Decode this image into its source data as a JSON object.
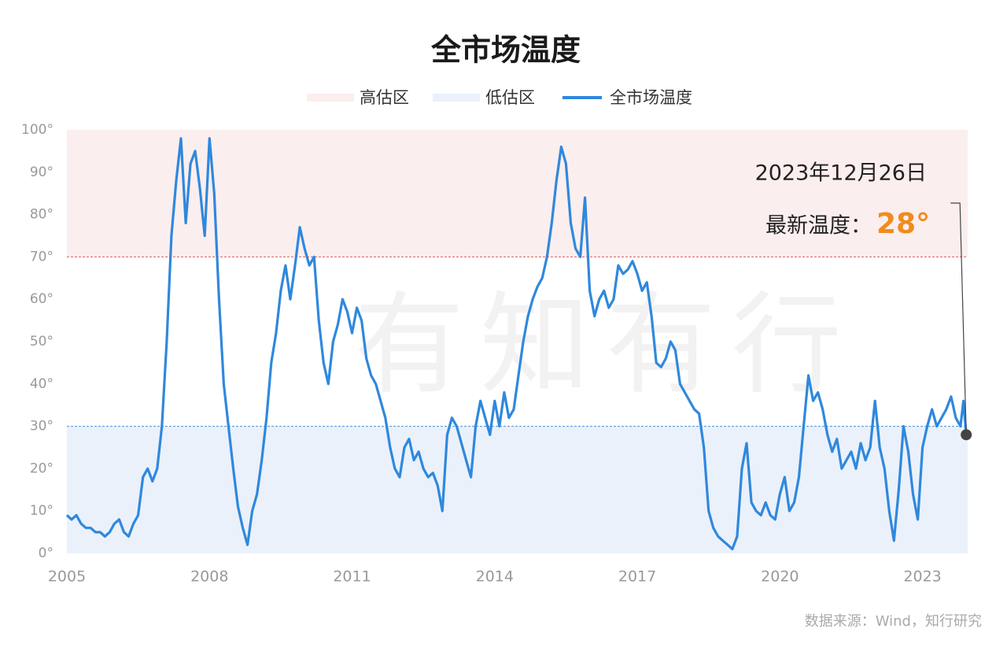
{
  "chart_data": {
    "type": "line",
    "title": "全市场温度",
    "watermark": "有知有行",
    "source": "数据来源：Wind，知行研究",
    "xlim": [
      2005,
      2023.95
    ],
    "xticks": [
      2005,
      2008,
      2011,
      2014,
      2017,
      2020,
      2023
    ],
    "ylim": [
      0,
      100
    ],
    "yticks": [
      {
        "value": 0,
        "label": "0°"
      },
      {
        "value": 10,
        "label": "10°"
      },
      {
        "value": 20,
        "label": "20°"
      },
      {
        "value": 30,
        "label": "30°"
      },
      {
        "value": 40,
        "label": "40°"
      },
      {
        "value": 50,
        "label": "50°"
      },
      {
        "value": 60,
        "label": "60°"
      },
      {
        "value": 70,
        "label": "70°"
      },
      {
        "value": 80,
        "label": "80°"
      },
      {
        "value": 90,
        "label": "90°"
      },
      {
        "value": 100,
        "label": "100°"
      }
    ],
    "grid": false,
    "bands": [
      {
        "name": "高估区",
        "range": [
          70,
          100
        ],
        "color": "#fbeeee",
        "edge_color": "#e05a5a"
      },
      {
        "name": "低估区",
        "range": [
          0,
          30
        ],
        "color": "#eaf1fa",
        "edge_color": "#4a8fd6"
      }
    ],
    "x": [
      2005.0,
      2005.1,
      2005.2,
      2005.3,
      2005.4,
      2005.5,
      2005.6,
      2005.7,
      2005.8,
      2005.9,
      2006.0,
      2006.1,
      2006.2,
      2006.3,
      2006.4,
      2006.5,
      2006.6,
      2006.7,
      2006.8,
      2006.9,
      2007.0,
      2007.1,
      2007.2,
      2007.3,
      2007.4,
      2007.5,
      2007.6,
      2007.7,
      2007.8,
      2007.9,
      2008.0,
      2008.1,
      2008.2,
      2008.3,
      2008.4,
      2008.5,
      2008.6,
      2008.7,
      2008.8,
      2008.9,
      2009.0,
      2009.1,
      2009.2,
      2009.3,
      2009.4,
      2009.5,
      2009.6,
      2009.7,
      2009.8,
      2009.9,
      2010.0,
      2010.1,
      2010.2,
      2010.3,
      2010.4,
      2010.5,
      2010.6,
      2010.7,
      2010.8,
      2010.9,
      2011.0,
      2011.1,
      2011.2,
      2011.3,
      2011.4,
      2011.5,
      2011.6,
      2011.7,
      2011.8,
      2011.9,
      2012.0,
      2012.1,
      2012.2,
      2012.3,
      2012.4,
      2012.5,
      2012.6,
      2012.7,
      2012.8,
      2012.9,
      2013.0,
      2013.1,
      2013.2,
      2013.3,
      2013.4,
      2013.5,
      2013.6,
      2013.7,
      2013.8,
      2013.9,
      2014.0,
      2014.1,
      2014.2,
      2014.3,
      2014.4,
      2014.5,
      2014.6,
      2014.7,
      2014.8,
      2014.9,
      2015.0,
      2015.1,
      2015.2,
      2015.3,
      2015.4,
      2015.5,
      2015.6,
      2015.7,
      2015.8,
      2015.9,
      2016.0,
      2016.1,
      2016.2,
      2016.3,
      2016.4,
      2016.5,
      2016.6,
      2016.7,
      2016.8,
      2016.9,
      2017.0,
      2017.1,
      2017.2,
      2017.3,
      2017.4,
      2017.5,
      2017.6,
      2017.7,
      2017.8,
      2017.9,
      2018.0,
      2018.1,
      2018.2,
      2018.3,
      2018.4,
      2018.5,
      2018.6,
      2018.7,
      2018.8,
      2018.9,
      2019.0,
      2019.1,
      2019.2,
      2019.3,
      2019.4,
      2019.5,
      2019.6,
      2019.7,
      2019.8,
      2019.9,
      2020.0,
      2020.1,
      2020.2,
      2020.3,
      2020.4,
      2020.5,
      2020.6,
      2020.7,
      2020.8,
      2020.9,
      2021.0,
      2021.1,
      2021.2,
      2021.3,
      2021.4,
      2021.5,
      2021.6,
      2021.7,
      2021.8,
      2021.9,
      2022.0,
      2022.1,
      2022.2,
      2022.3,
      2022.4,
      2022.5,
      2022.6,
      2022.7,
      2022.8,
      2022.9,
      2023.0,
      2023.1,
      2023.2,
      2023.3,
      2023.4,
      2023.5,
      2023.6,
      2023.7,
      2023.8,
      2023.86,
      2023.92
    ],
    "series": [
      {
        "name": "全市场温度",
        "color": "#2f88dd",
        "values": [
          9,
          8,
          9,
          7,
          6,
          6,
          5,
          5,
          4,
          5,
          7,
          8,
          5,
          4,
          7,
          9,
          18,
          20,
          17,
          20,
          30,
          50,
          75,
          88,
          98,
          78,
          92,
          95,
          86,
          75,
          98,
          85,
          60,
          40,
          30,
          20,
          11,
          6,
          2,
          10,
          14,
          22,
          32,
          45,
          52,
          62,
          68,
          60,
          68,
          77,
          72,
          68,
          70,
          55,
          45,
          40,
          50,
          54,
          60,
          57,
          52,
          58,
          55,
          46,
          42,
          40,
          36,
          32,
          25,
          20,
          18,
          25,
          27,
          22,
          24,
          20,
          18,
          19,
          16,
          10,
          28,
          32,
          30,
          26,
          22,
          18,
          30,
          36,
          32,
          28,
          36,
          30,
          38,
          32,
          34,
          42,
          50,
          56,
          60,
          63,
          65,
          70,
          78,
          88,
          96,
          92,
          78,
          72,
          70,
          84,
          62,
          56,
          60,
          62,
          58,
          60,
          68,
          66,
          67,
          69,
          66,
          62,
          64,
          56,
          45,
          44,
          46,
          50,
          48,
          40,
          38,
          36,
          34,
          33,
          25,
          10,
          6,
          4,
          3,
          2,
          1,
          4,
          20,
          26,
          12,
          10,
          9,
          12,
          9,
          8,
          14,
          18,
          10,
          12,
          18,
          30,
          42,
          36,
          38,
          34,
          28,
          24,
          27,
          20,
          22,
          24,
          20,
          26,
          22,
          25,
          36,
          25,
          20,
          10,
          3,
          15,
          30,
          24,
          14,
          8,
          25,
          30,
          34,
          30,
          32,
          34,
          37,
          32,
          30,
          36,
          28
        ]
      }
    ],
    "annotation": {
      "date": "2023年12月26日",
      "label": "最新温度：",
      "value_label": "28°",
      "color": "#ef8c1e"
    }
  }
}
